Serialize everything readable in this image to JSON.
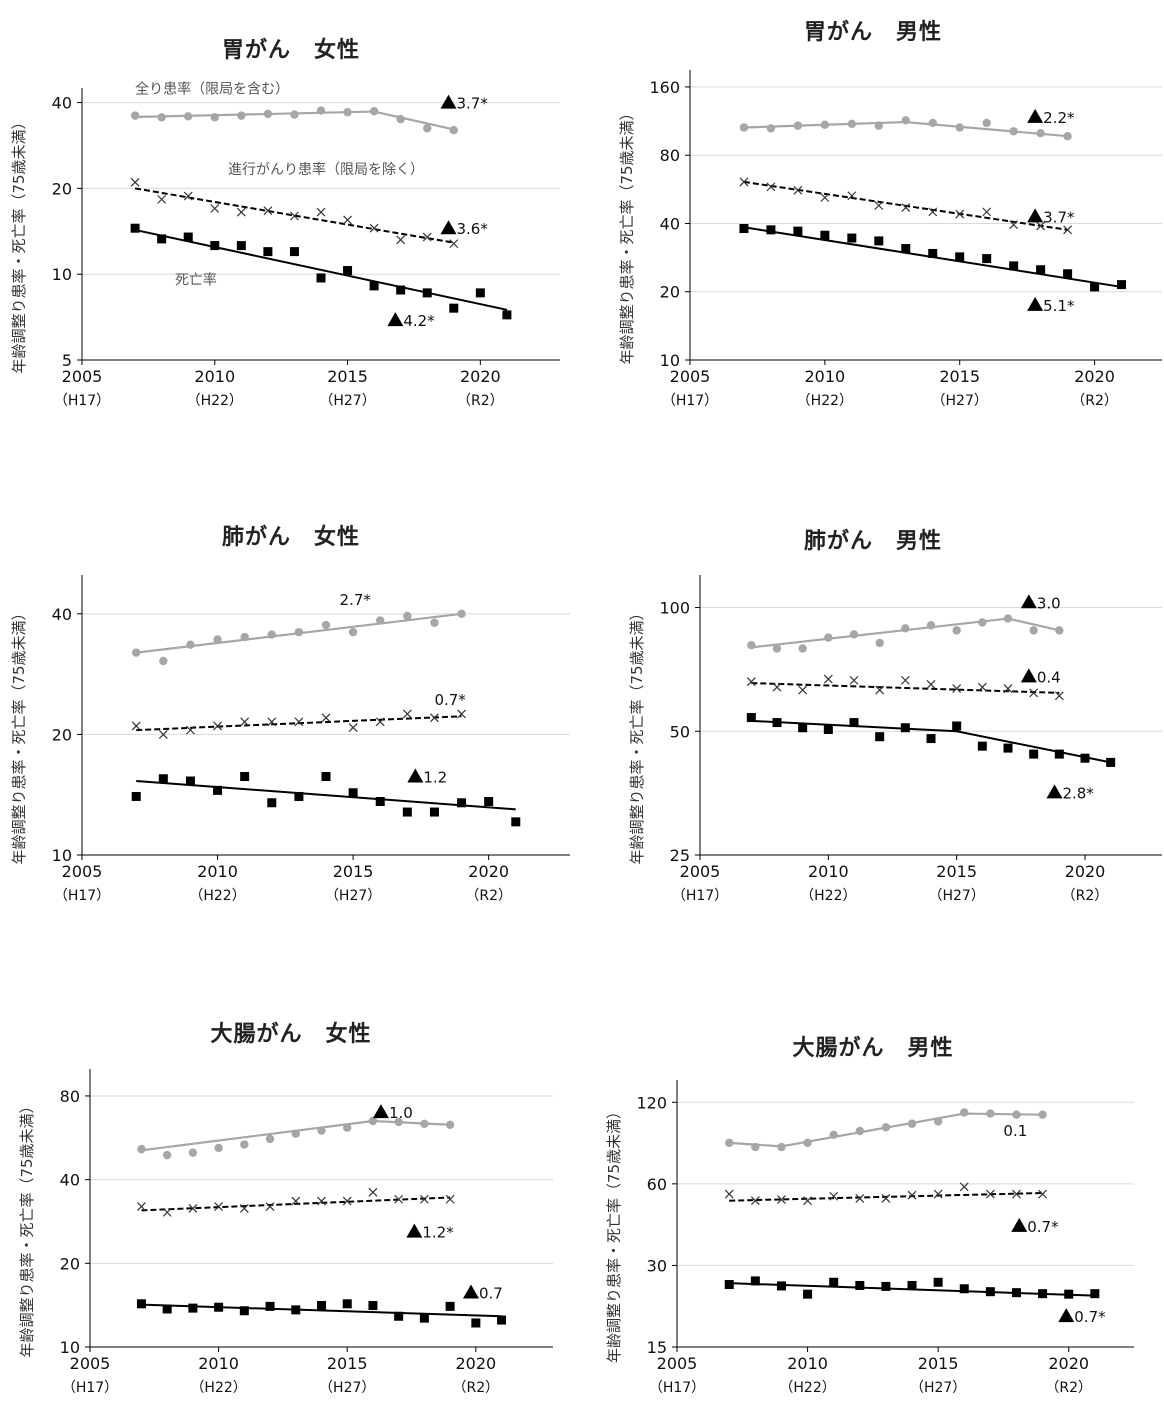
{
  "chart_data": [
    {
      "type": "line",
      "title": "胃がん　女性",
      "ylabel": "年齢調整り患率・死亡率（75歳未満）",
      "xlim": [
        2005,
        2023
      ],
      "ylim": [
        5,
        45
      ],
      "yscale": "log",
      "yticks": [
        5,
        10,
        20,
        40
      ],
      "xticks": [
        2005,
        2010,
        2015,
        2020
      ],
      "xticks_sub": [
        "（H17）",
        "（H22）",
        "（H27）",
        "（R2）"
      ],
      "series": [
        {
          "name": "全り患率（限局を含む）",
          "style": "gray-circle",
          "x": [
            2007,
            2008,
            2009,
            2010,
            2011,
            2012,
            2013,
            2014,
            2015,
            2016,
            2017,
            2018,
            2019
          ],
          "y": [
            36,
            35.5,
            35.8,
            35.5,
            36,
            36.5,
            36.3,
            37.5,
            37,
            37.3,
            35,
            32.5,
            32
          ],
          "trend": [
            [
              2007,
              35.6
            ],
            [
              2016,
              37.2
            ],
            [
              2019,
              32.2
            ]
          ],
          "annotation": "▲3.7*",
          "ann_x": 2018.5,
          "ann_y": 40
        },
        {
          "name": "進行がんり患率（限局を除く）",
          "style": "black-cross-dashed",
          "x": [
            2007,
            2008,
            2009,
            2010,
            2011,
            2012,
            2013,
            2014,
            2015,
            2016,
            2017,
            2018,
            2019
          ],
          "y": [
            21,
            18.3,
            18.8,
            17,
            16.5,
            16.7,
            16,
            16.5,
            15.5,
            14.5,
            13.2,
            13.5,
            12.8
          ],
          "trend": [
            [
              2007,
              20
            ],
            [
              2019,
              12.9
            ]
          ],
          "annotation": "▲3.6*",
          "ann_x": 2018.5,
          "ann_y": 14.5
        },
        {
          "name": "死亡率",
          "style": "black-square",
          "x": [
            2007,
            2008,
            2009,
            2010,
            2011,
            2012,
            2013,
            2014,
            2015,
            2016,
            2017,
            2018,
            2019,
            2020,
            2021
          ],
          "y": [
            14.5,
            13.3,
            13.5,
            12.6,
            12.6,
            12,
            12,
            9.7,
            10.3,
            9.1,
            8.8,
            8.6,
            7.6,
            8.6,
            7.2
          ],
          "trend": [
            [
              2007,
              14.3
            ],
            [
              2021,
              7.5
            ]
          ],
          "annotation": "▲4.2*",
          "ann_x": 2016.5,
          "ann_y": 6.9
        }
      ]
    },
    {
      "type": "line",
      "title": "胃がん　男性",
      "ylabel": "年齢調整り患率・死亡率（75歳未満）",
      "xlim": [
        2005,
        2022.5
      ],
      "ylim": [
        10,
        190
      ],
      "yscale": "log",
      "yticks": [
        10,
        20,
        40,
        80,
        160
      ],
      "xticks": [
        2005,
        2010,
        2015,
        2020
      ],
      "xticks_sub": [
        "（H17）",
        "（H22）",
        "（H27）",
        "（R2）"
      ],
      "series": [
        {
          "style": "gray-circle",
          "x": [
            2007,
            2008,
            2009,
            2010,
            2011,
            2012,
            2013,
            2014,
            2015,
            2016,
            2017,
            2018,
            2019
          ],
          "y": [
            106,
            105,
            108,
            109,
            110,
            108,
            114,
            111,
            106,
            111,
            102,
            100,
            97
          ],
          "trend": [
            [
              2007,
              106
            ],
            [
              2013,
              112
            ],
            [
              2019,
              97
            ]
          ],
          "annotation": "▲2.2*",
          "ann_x": 2017.5,
          "ann_y": 118
        },
        {
          "style": "black-cross-dashed",
          "x": [
            2007,
            2008,
            2009,
            2010,
            2011,
            2012,
            2013,
            2014,
            2015,
            2016,
            2017,
            2018,
            2019
          ],
          "y": [
            61,
            58,
            56,
            52,
            53,
            48,
            47,
            45,
            44,
            45,
            39.5,
            39,
            37.5
          ],
          "trend": [
            [
              2007,
              61
            ],
            [
              2019,
              37.5
            ]
          ],
          "annotation": "▲3.7*",
          "ann_x": 2017.5,
          "ann_y": 43
        },
        {
          "style": "black-square",
          "x": [
            2007,
            2008,
            2009,
            2010,
            2011,
            2012,
            2013,
            2014,
            2015,
            2016,
            2017,
            2018,
            2019,
            2020,
            2021
          ],
          "y": [
            38,
            37.5,
            37,
            35.5,
            34.5,
            33.5,
            31,
            29.5,
            28.5,
            28,
            26,
            25,
            24,
            21,
            21.5
          ],
          "trend": [
            [
              2007,
              38.5
            ],
            [
              2021,
              21
            ]
          ],
          "annotation": "▲5.1*",
          "ann_x": 2017.5,
          "ann_y": 17.5
        }
      ]
    },
    {
      "type": "line",
      "title": "肺がん　女性",
      "ylabel": "年齢調整り患率・死亡率（75歳未満）",
      "xlim": [
        2005,
        2023
      ],
      "ylim": [
        10,
        50
      ],
      "yscale": "log",
      "yticks": [
        10,
        20,
        40
      ],
      "xticks": [
        2005,
        2010,
        2015,
        2020
      ],
      "xticks_sub": [
        "（H17）",
        "（H22）",
        "（H27）",
        "（R2）"
      ],
      "series": [
        {
          "style": "gray-circle",
          "x": [
            2007,
            2008,
            2009,
            2010,
            2011,
            2012,
            2013,
            2014,
            2015,
            2016,
            2017,
            2018,
            2019
          ],
          "y": [
            32,
            30.5,
            33.5,
            34.5,
            35,
            35.5,
            36,
            37.5,
            36,
            38.5,
            39.5,
            38,
            40
          ],
          "trend": [
            [
              2007,
              32
            ],
            [
              2019,
              40
            ]
          ],
          "annotation": "2.7*",
          "ann_x": 2014.5,
          "ann_y": 43.5
        },
        {
          "style": "black-cross-dashed",
          "x": [
            2007,
            2008,
            2009,
            2010,
            2011,
            2012,
            2013,
            2014,
            2015,
            2016,
            2017,
            2018,
            2019
          ],
          "y": [
            21,
            20,
            20.5,
            21,
            21.5,
            21.5,
            21.5,
            22,
            20.8,
            21.5,
            22.5,
            22,
            22.5
          ],
          "trend": [
            [
              2007,
              20.5
            ],
            [
              2019,
              22.2
            ]
          ],
          "annotation": "0.7*",
          "ann_x": 2018,
          "ann_y": 24.5
        },
        {
          "style": "black-square",
          "x": [
            2007,
            2008,
            2009,
            2010,
            2011,
            2012,
            2013,
            2014,
            2015,
            2016,
            2017,
            2018,
            2019,
            2020,
            2021
          ],
          "y": [
            14,
            15.5,
            15.3,
            14.5,
            15.7,
            13.5,
            14,
            15.7,
            14.3,
            13.6,
            12.8,
            12.8,
            13.5,
            13.6,
            12.1
          ],
          "trend": [
            [
              2007,
              15.3
            ],
            [
              2021,
              13
            ]
          ],
          "annotation": "▲1.2",
          "ann_x": 2017,
          "ann_y": 15.7
        }
      ]
    },
    {
      "type": "line",
      "title": "肺がん　男性",
      "ylabel": "年齢調整り患率・死亡率（75歳未満）",
      "xlim": [
        2005,
        2023
      ],
      "ylim": [
        25,
        120
      ],
      "yscale": "log",
      "yticks": [
        25,
        50,
        100
      ],
      "xticks": [
        2005,
        2010,
        2015,
        2020
      ],
      "xticks_sub": [
        "（H17）",
        "（H22）",
        "（H27）",
        "（R2）"
      ],
      "series": [
        {
          "style": "gray-circle",
          "x": [
            2007,
            2008,
            2009,
            2010,
            2011,
            2012,
            2013,
            2014,
            2015,
            2016,
            2017,
            2018,
            2019
          ],
          "y": [
            81,
            79.5,
            79.5,
            84.5,
            86,
            82,
            89,
            90.5,
            88,
            92,
            94,
            88,
            88
          ],
          "trend": [
            [
              2007,
              80
            ],
            [
              2017,
              94
            ],
            [
              2019,
              88
            ]
          ],
          "annotation": "▲3.0",
          "ann_x": 2017.5,
          "ann_y": 103
        },
        {
          "style": "black-cross-dashed",
          "x": [
            2007,
            2008,
            2009,
            2010,
            2011,
            2012,
            2013,
            2014,
            2015,
            2016,
            2017,
            2018,
            2019
          ],
          "y": [
            66,
            64,
            63,
            67,
            66.5,
            63,
            66.5,
            65,
            63.5,
            64,
            63.5,
            62,
            61
          ],
          "trend": [
            [
              2007,
              65.5
            ],
            [
              2019,
              62
            ]
          ],
          "annotation": "▲0.4",
          "ann_x": 2017.5,
          "ann_y": 68
        },
        {
          "style": "black-square",
          "x": [
            2007,
            2008,
            2009,
            2010,
            2011,
            2012,
            2013,
            2014,
            2015,
            2016,
            2017,
            2018,
            2019,
            2020,
            2021
          ],
          "y": [
            54,
            52.5,
            51,
            50.5,
            52.5,
            48.5,
            51,
            48,
            51.5,
            46,
            45.5,
            44,
            44,
            43,
            42
          ],
          "trend": [
            [
              2007,
              53
            ],
            [
              2015,
              50
            ],
            [
              2021,
              42
            ]
          ],
          "annotation": "▲2.8*",
          "ann_x": 2018.5,
          "ann_y": 35.5
        }
      ]
    },
    {
      "type": "line",
      "title": "大腸がん　女性",
      "ylabel": "年齢調整り患率・死亡率（75歳未満）",
      "xlim": [
        2005,
        2023
      ],
      "ylim": [
        10,
        100
      ],
      "yscale": "log",
      "yticks": [
        10,
        20,
        40,
        80
      ],
      "xticks": [
        2005,
        2010,
        2015,
        2020
      ],
      "xticks_sub": [
        "（H17）",
        "（H22）",
        "（H27）",
        "（R2）"
      ],
      "series": [
        {
          "style": "gray-circle",
          "x": [
            2007,
            2008,
            2009,
            2010,
            2011,
            2012,
            2013,
            2014,
            2015,
            2016,
            2017,
            2018,
            2019
          ],
          "y": [
            51.5,
            49,
            50,
            52,
            53.5,
            56,
            58.5,
            60,
            61.5,
            65,
            64.5,
            63.5,
            63
          ],
          "trend": [
            [
              2007,
              51
            ],
            [
              2016,
              65
            ],
            [
              2019,
              63
            ]
          ],
          "annotation": "▲1.0",
          "ann_x": 2016,
          "ann_y": 70
        },
        {
          "style": "black-cross-dashed",
          "x": [
            2007,
            2008,
            2009,
            2010,
            2011,
            2012,
            2013,
            2014,
            2015,
            2016,
            2017,
            2018,
            2019
          ],
          "y": [
            32,
            30.5,
            31.5,
            32,
            31.5,
            32,
            33.5,
            33.5,
            33.5,
            36,
            34,
            34,
            34
          ],
          "trend": [
            [
              2007,
              31
            ],
            [
              2019,
              34.5
            ]
          ],
          "annotation": "▲1.2*",
          "ann_x": 2017.3,
          "ann_y": 26
        },
        {
          "style": "black-square",
          "x": [
            2007,
            2008,
            2009,
            2010,
            2011,
            2012,
            2013,
            2014,
            2015,
            2016,
            2017,
            2018,
            2019,
            2020,
            2021
          ],
          "y": [
            14.3,
            13.7,
            13.8,
            13.9,
            13.5,
            14,
            13.6,
            14.1,
            14.3,
            14.1,
            12.9,
            12.7,
            14,
            12.2,
            12.5
          ],
          "trend": [
            [
              2007,
              14.2
            ],
            [
              2021,
              12.9
            ]
          ],
          "annotation": "▲0.7",
          "ann_x": 2019.5,
          "ann_y": 15.7
        }
      ]
    },
    {
      "type": "line",
      "title": "大腸がん　男性",
      "ylabel": "年齢調整り患率・死亡率（75歳未満）",
      "xlim": [
        2005,
        2022.5
      ],
      "ylim": [
        15,
        145
      ],
      "yscale": "log",
      "yticks": [
        15,
        30,
        60,
        120
      ],
      "xticks": [
        2005,
        2010,
        2015,
        2020
      ],
      "xticks_sub": [
        "（H17）",
        "（H22）",
        "（H27）",
        "（R2）"
      ],
      "series": [
        {
          "style": "gray-circle",
          "x": [
            2007,
            2008,
            2009,
            2010,
            2011,
            2012,
            2013,
            2014,
            2015,
            2016,
            2017,
            2018,
            2019
          ],
          "y": [
            85,
            82,
            82,
            85,
            91,
            94,
            97,
            100,
            102,
            110,
            109,
            108,
            108
          ],
          "trend": [
            [
              2007,
              85
            ],
            [
              2009,
              82.5
            ],
            [
              2016,
              109
            ],
            [
              2019,
              108
            ]
          ],
          "annotation": "0.1",
          "ann_x": 2017.5,
          "ann_y": 95
        },
        {
          "style": "black-cross-dashed",
          "x": [
            2007,
            2008,
            2009,
            2010,
            2011,
            2012,
            2013,
            2014,
            2015,
            2016,
            2017,
            2018,
            2019
          ],
          "y": [
            55,
            52,
            52.5,
            52,
            54,
            53,
            53,
            54.5,
            55,
            58.5,
            55,
            55,
            55
          ],
          "trend": [
            [
              2007,
              52
            ],
            [
              2019,
              55.5
            ]
          ],
          "annotation": "▲0.7*",
          "ann_x": 2017.8,
          "ann_y": 42
        },
        {
          "style": "black-square",
          "x": [
            2007,
            2008,
            2009,
            2010,
            2011,
            2012,
            2013,
            2014,
            2015,
            2016,
            2017,
            2018,
            2019,
            2020,
            2021
          ],
          "y": [
            25.5,
            26.3,
            25.2,
            23.5,
            26,
            25.3,
            25.1,
            25.3,
            26,
            24.6,
            24,
            23.8,
            23.6,
            23.5,
            23.6
          ],
          "trend": [
            [
              2007,
              25.8
            ],
            [
              2021,
              23.2
            ]
          ],
          "annotation": "▲0.7*",
          "ann_x": 2019.6,
          "ann_y": 19.5
        }
      ]
    }
  ],
  "series_labels": {
    "incidence_all": "全り患率（限局を含む）",
    "incidence_advanced": "進行がんり患率（限局を除く）",
    "mortality": "死亡率"
  },
  "colors": {
    "gray": "#a6a6a6",
    "black": "#000000",
    "grid": "#d9d9d9"
  }
}
